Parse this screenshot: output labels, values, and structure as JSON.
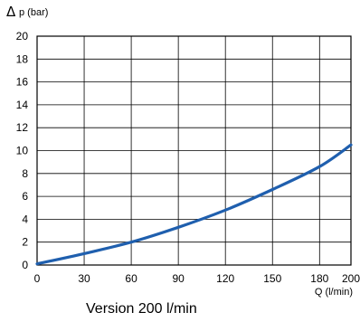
{
  "chart_data": {
    "type": "line",
    "ylabel_symbol": "Δ",
    "ylabel": "p (bar)",
    "xlabel": "Q (l/min)",
    "xlim": [
      0,
      200
    ],
    "ylim": [
      0,
      20
    ],
    "x_ticks": [
      "0",
      "30",
      "60",
      "90",
      "120",
      "150",
      "180",
      "200"
    ],
    "y_ticks": [
      "0",
      "2",
      "4",
      "6",
      "8",
      "10",
      "12",
      "14",
      "16",
      "18",
      "20"
    ],
    "grid": true,
    "line_color": "#1f5fae",
    "series": [
      {
        "x": [
          0,
          30,
          60,
          90,
          120,
          150,
          180,
          200
        ],
        "y": [
          0.1,
          1.0,
          2.0,
          3.3,
          4.8,
          6.6,
          8.6,
          10.5
        ]
      }
    ]
  },
  "caption": "Version 200 l/min"
}
